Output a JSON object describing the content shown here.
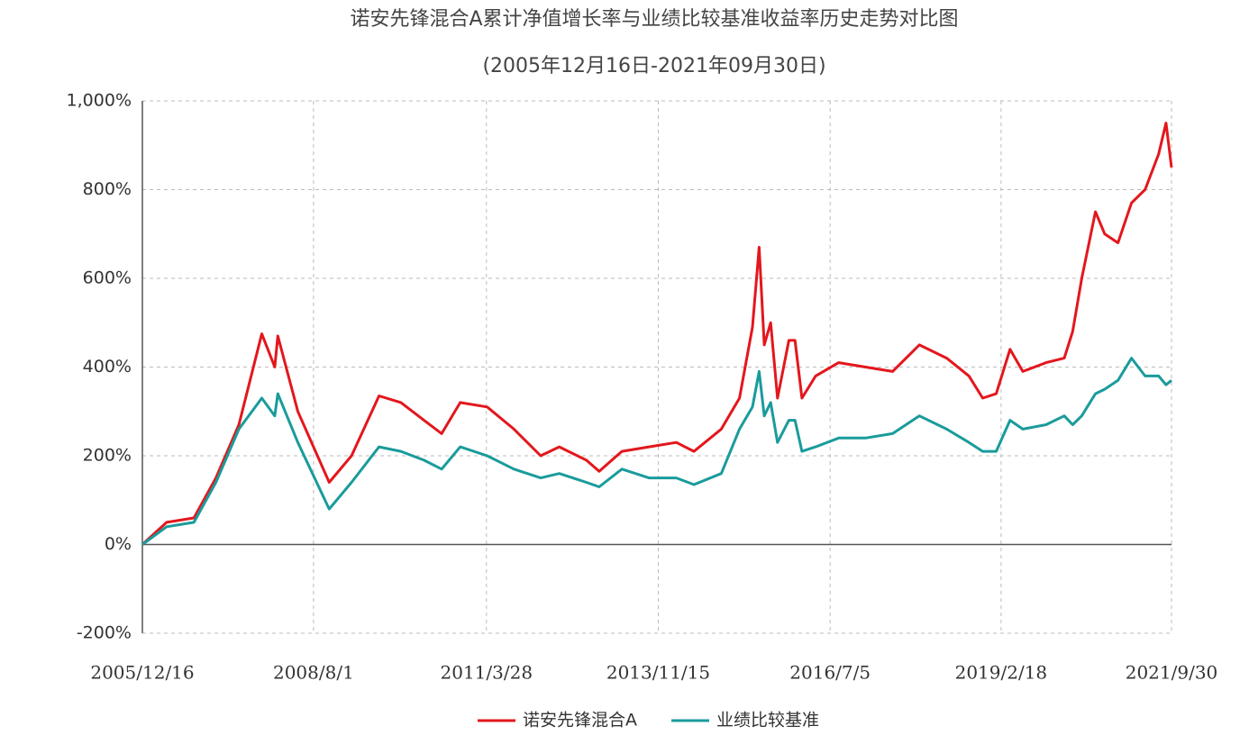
{
  "chart_data": {
    "type": "line",
    "title": "诺安先锋混合A累计净值增长率与业绩比较基准收益率历史走势对比图",
    "subtitle": "(2005年12月16日-2021年09月30日)",
    "x": [
      "2005/12/16",
      "2006/5/1",
      "2006/10/1",
      "2007/2/1",
      "2007/6/10",
      "2007/10/16",
      "2007/12/28",
      "2008/1/14",
      "2008/5/5",
      "2008/10/28",
      "2009/3/2",
      "2009/8/3",
      "2009/12/4",
      "2010/4/12",
      "2010/7/20",
      "2010/11/1",
      "2011/4/1",
      "2011/8/29",
      "2012/1/26",
      "2012/5/9",
      "2012/10/8",
      "2012/12/19",
      "2013/4/25",
      "2013/9/24",
      "2014/2/24",
      "2014/6/3",
      "2014/11/3",
      "2015/2/13",
      "2015/4/27",
      "2015/6/3",
      "2015/7/2",
      "2015/8/7",
      "2015/9/14",
      "2015/11/17",
      "2015/12/21",
      "2016/1/29",
      "2016/4/15",
      "2016/8/22",
      "2017/1/19",
      "2017/6/20",
      "2017/11/17",
      "2018/4/19",
      "2018/8/22",
      "2018/11/7",
      "2019/1/22",
      "2019/4/9",
      "2019/6/20",
      "2019/10/28",
      "2020/2/7",
      "2020/3/25",
      "2020/5/15",
      "2020/7/31",
      "2020/9/21",
      "2020/12/4",
      "2021/2/18",
      "2021/5/5",
      "2021/7/20",
      "2021/8/30",
      "2021/9/30"
    ],
    "series": [
      {
        "name": "诺安先锋混合A",
        "color": "#e3171d",
        "values": [
          0,
          50,
          60,
          150,
          270,
          475,
          400,
          470,
          300,
          140,
          200,
          335,
          320,
          280,
          250,
          320,
          310,
          260,
          200,
          220,
          190,
          165,
          210,
          220,
          230,
          210,
          260,
          330,
          490,
          670,
          450,
          500,
          330,
          460,
          460,
          330,
          380,
          410,
          400,
          390,
          450,
          420,
          380,
          330,
          340,
          440,
          390,
          410,
          420,
          480,
          600,
          750,
          700,
          680,
          770,
          800,
          880,
          950,
          850
        ]
      },
      {
        "name": "业绩比较基准",
        "color": "#1a9b9b",
        "values": [
          0,
          40,
          50,
          140,
          260,
          330,
          290,
          340,
          230,
          80,
          140,
          220,
          210,
          190,
          170,
          220,
          200,
          170,
          150,
          160,
          140,
          130,
          170,
          150,
          150,
          135,
          160,
          260,
          310,
          390,
          290,
          320,
          230,
          280,
          280,
          210,
          220,
          240,
          240,
          250,
          290,
          260,
          230,
          210,
          210,
          280,
          260,
          270,
          290,
          270,
          290,
          340,
          350,
          370,
          420,
          380,
          380,
          360,
          370
        ]
      }
    ],
    "xlim": [
      "2005/12/16",
      "2021/9/30"
    ],
    "xticks": [
      "2005/12/16",
      "2008/8/1",
      "2011/3/28",
      "2013/11/15",
      "2016/7/5",
      "2019/2/18",
      "2021/9/30"
    ],
    "ylim": [
      -200,
      1000
    ],
    "yticks": [
      {
        "value": -200,
        "label": "-200%"
      },
      {
        "value": 0,
        "label": "0%"
      },
      {
        "value": 200,
        "label": "200%"
      },
      {
        "value": 400,
        "label": "400%"
      },
      {
        "value": 600,
        "label": "600%"
      },
      {
        "value": 800,
        "label": "800%"
      },
      {
        "value": 1000,
        "label": "1,000%"
      }
    ],
    "grid": true,
    "legend": "bottom"
  }
}
